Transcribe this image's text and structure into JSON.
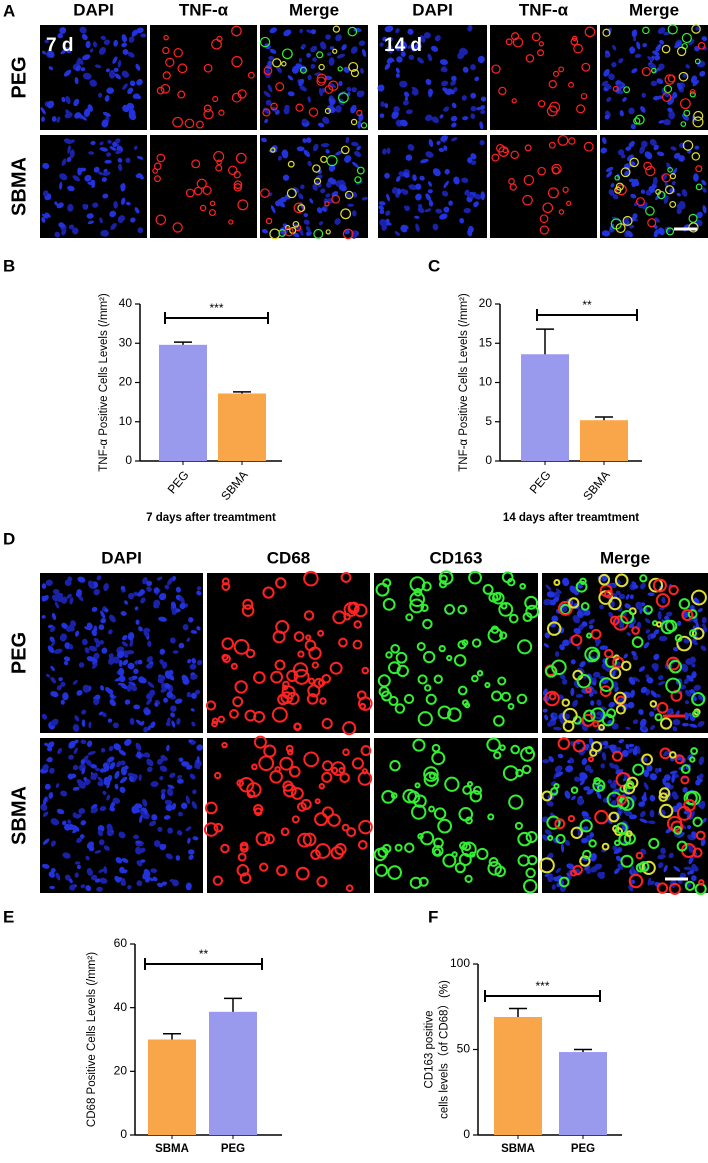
{
  "figure": {
    "panel_letters": [
      "A",
      "B",
      "C",
      "D",
      "E",
      "F"
    ],
    "panel_a": {
      "column_headers": [
        "DAPI",
        "TNF-α",
        "Merge",
        "DAPI",
        "TNF-α",
        "Merge"
      ],
      "row_labels": [
        "PEG",
        "SBMA"
      ],
      "time_labels": [
        "7 d",
        "14 d"
      ]
    },
    "panel_d": {
      "column_headers": [
        "DAPI",
        "CD68",
        "CD163",
        "Merge"
      ],
      "row_labels": [
        "PEG",
        "SBMA"
      ]
    }
  },
  "chart_data": [
    {
      "type": "bar",
      "ylabel": [
        "TNF-α Positive Cells Levels (/mm²)"
      ],
      "xlabel": "7 days after treamtment",
      "categories": [
        "PEG",
        "SBMA"
      ],
      "values": [
        29.6,
        17.2
      ],
      "errors": [
        0.7,
        0.4
      ],
      "colors": [
        "#9999ee",
        "#f9a64a"
      ],
      "ylim": [
        0,
        40
      ],
      "yticks": [
        0,
        10,
        20,
        30,
        40
      ],
      "significance": "***"
    },
    {
      "type": "bar",
      "ylabel": [
        "TNF-α Positive Cells Levels (/mm²)"
      ],
      "xlabel": "14 days after treamtment",
      "categories": [
        "PEG",
        "SBMA"
      ],
      "values": [
        13.6,
        5.2
      ],
      "errors": [
        3.2,
        0.4
      ],
      "colors": [
        "#9999ee",
        "#f9a64a"
      ],
      "ylim": [
        0,
        20
      ],
      "yticks": [
        0,
        5,
        10,
        15,
        20
      ],
      "significance": "**"
    },
    {
      "type": "bar",
      "ylabel": [
        "CD68 Positive Cells Levels (/mm²)"
      ],
      "categories": [
        "SBMA",
        "PEG"
      ],
      "values": [
        30,
        38.7
      ],
      "errors": [
        1.8,
        4.2
      ],
      "colors": [
        "#f9a64a",
        "#9999ee"
      ],
      "ylim": [
        0,
        60
      ],
      "yticks": [
        0,
        20,
        40,
        60
      ],
      "significance": "**"
    },
    {
      "type": "bar",
      "ylabel": [
        "CD163 positive",
        "cells levels（of CD68）(%)"
      ],
      "categories": [
        "SBMA",
        "PEG"
      ],
      "values": [
        69,
        48.5
      ],
      "errors": [
        5,
        1.5
      ],
      "colors": [
        "#f9a64a",
        "#9999ee"
      ],
      "ylim": [
        0,
        100
      ],
      "yticks": [
        0,
        50,
        100
      ],
      "significance": "***"
    }
  ]
}
